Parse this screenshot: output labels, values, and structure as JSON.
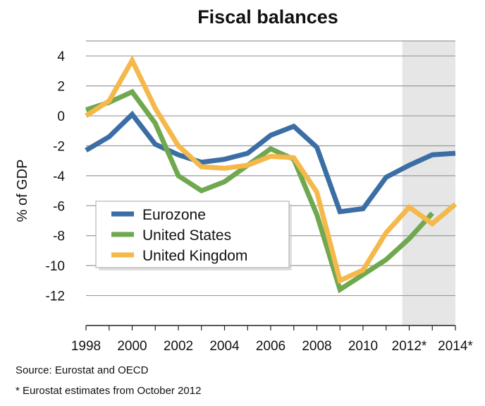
{
  "chart_data": {
    "type": "line",
    "title": "Fiscal balances",
    "ylabel": "% of GDP",
    "xlabel": "",
    "x": [
      1998,
      1999,
      2000,
      2001,
      2002,
      2003,
      2004,
      2005,
      2006,
      2007,
      2008,
      2009,
      2010,
      2011,
      2012,
      2013,
      2014
    ],
    "x_tick_labels": [
      "1998",
      "2000",
      "2002",
      "2004",
      "2006",
      "2008",
      "2010",
      "2012*",
      "2014*"
    ],
    "x_tick_values": [
      1998,
      2000,
      2002,
      2004,
      2006,
      2008,
      2010,
      2012,
      2014
    ],
    "y_ticks": [
      4,
      2,
      0,
      -2,
      -4,
      -6,
      -8,
      -10,
      -12
    ],
    "y_tick_labels": [
      "4",
      "2",
      "0",
      "-2",
      "-4",
      "-6",
      "-8",
      "-10",
      "-12"
    ],
    "ylim": [
      -14,
      5
    ],
    "xlim": [
      1998,
      2014
    ],
    "grid": true,
    "shaded_region": [
      2011.7,
      2014
    ],
    "legend_position": "lower-left",
    "series": [
      {
        "name": "Eurozone",
        "color": "#3b6ea5",
        "x": [
          1998,
          1999,
          2000,
          2001,
          2002,
          2003,
          2004,
          2005,
          2006,
          2007,
          2008,
          2009,
          2010,
          2011,
          2012,
          2013,
          2014
        ],
        "values": [
          -2.3,
          -1.4,
          0.1,
          -1.9,
          -2.6,
          -3.1,
          -2.9,
          -2.5,
          -1.3,
          -0.7,
          -2.1,
          -6.4,
          -6.2,
          -4.1,
          -3.3,
          -2.6,
          -2.5
        ]
      },
      {
        "name": "United States",
        "color": "#6fa84f",
        "x": [
          1998,
          1999,
          2000,
          2001,
          2002,
          2003,
          2004,
          2005,
          2006,
          2007,
          2008,
          2009,
          2010,
          2011,
          2012,
          2013
        ],
        "values": [
          0.4,
          0.9,
          1.6,
          -0.5,
          -4.0,
          -5.0,
          -4.4,
          -3.3,
          -2.2,
          -2.9,
          -6.6,
          -11.6,
          -10.6,
          -9.6,
          -8.2,
          -6.5
        ]
      },
      {
        "name": "United Kingdom",
        "color": "#f5b84b",
        "x": [
          1998,
          1999,
          2000,
          2001,
          2002,
          2003,
          2004,
          2005,
          2006,
          2007,
          2008,
          2009,
          2010,
          2011,
          2012,
          2013,
          2014
        ],
        "values": [
          0.0,
          1.0,
          3.7,
          0.5,
          -2.0,
          -3.4,
          -3.5,
          -3.3,
          -2.7,
          -2.8,
          -5.1,
          -11.0,
          -10.3,
          -7.8,
          -6.1,
          -7.2,
          -5.9
        ]
      }
    ]
  },
  "notes": {
    "source": "Source: Eurostat and OECD",
    "footnote": "* Eurostat estimates from October 2012"
  }
}
